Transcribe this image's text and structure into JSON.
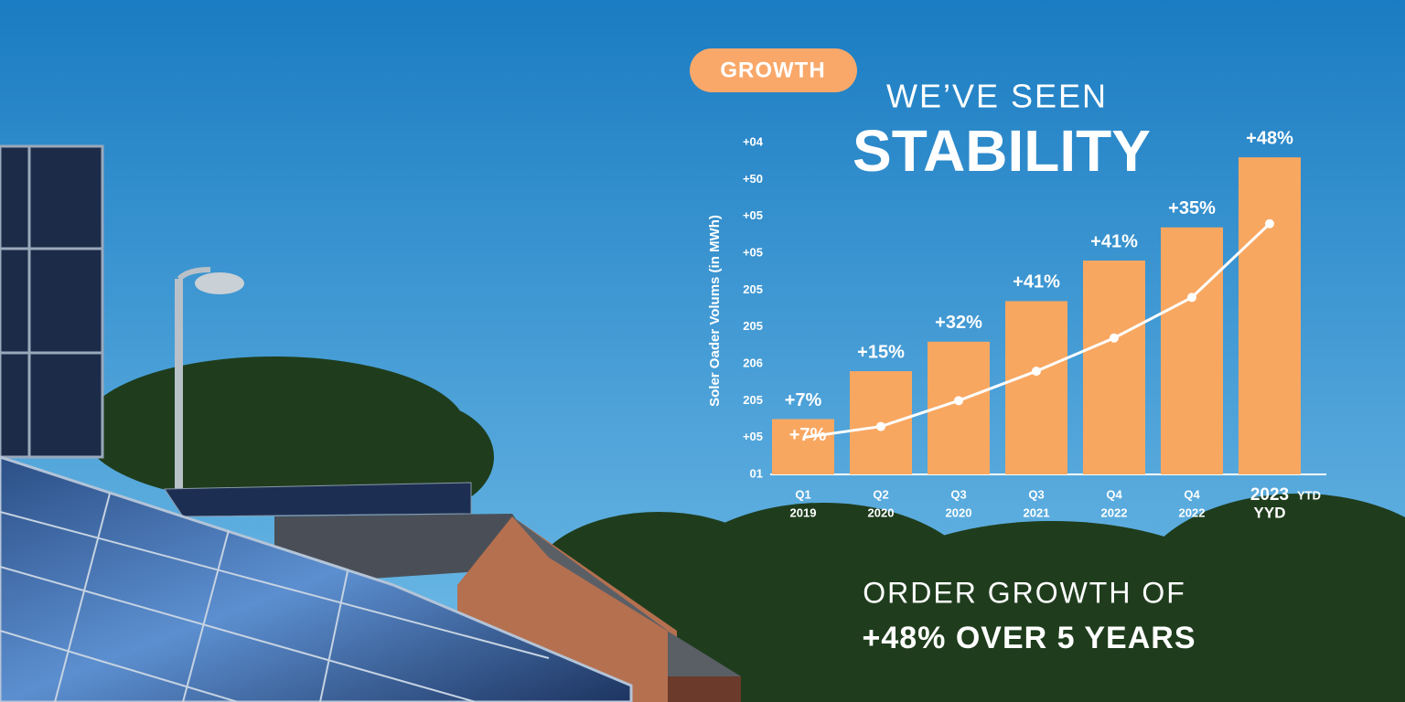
{
  "chart_data": {
    "type": "bar",
    "badge": "GROWTH",
    "title_top": "WE’VE SEEN",
    "title": "STABILITY",
    "y_label": "Soler Oader Volums (in MWh)",
    "categories": [
      "Q1",
      "Q2",
      "Q3",
      "Q3",
      "Q4",
      "Q4",
      "2023"
    ],
    "category_sublabels": [
      "2019",
      "2020",
      "2020",
      "2021",
      "2022",
      "2022",
      "YYD"
    ],
    "last_category_note": "YTD",
    "ylim": [
      0,
      9
    ],
    "yticks": [
      {
        "value": 0,
        "label": "01"
      },
      {
        "value": 1,
        "label": "+05"
      },
      {
        "value": 2,
        "label": "205"
      },
      {
        "value": 3,
        "label": "206"
      },
      {
        "value": 4,
        "label": "205"
      },
      {
        "value": 5,
        "label": "205"
      },
      {
        "value": 6,
        "label": "+05"
      },
      {
        "value": 7,
        "label": "+05"
      },
      {
        "value": 8,
        "label": "+50"
      },
      {
        "value": 9,
        "label": "+04"
      }
    ],
    "series": [
      {
        "type": "bar",
        "color": "#f8a761",
        "values": [
          1.5,
          2.8,
          3.6,
          4.7,
          5.8,
          6.7,
          8.6
        ],
        "annotations": [
          "+7%",
          "+15%",
          "+32%",
          "+41%",
          "+41%",
          "+35%",
          "+48%"
        ]
      },
      {
        "type": "line",
        "color": "#ffffff",
        "values": [
          1.0,
          1.3,
          2.0,
          2.8,
          3.7,
          4.8,
          6.8
        ],
        "annotation": "+7%"
      }
    ],
    "footer_top": "ORDER GROWTH OF",
    "footer_bottom": "+48% OVER 5 YEARS"
  }
}
